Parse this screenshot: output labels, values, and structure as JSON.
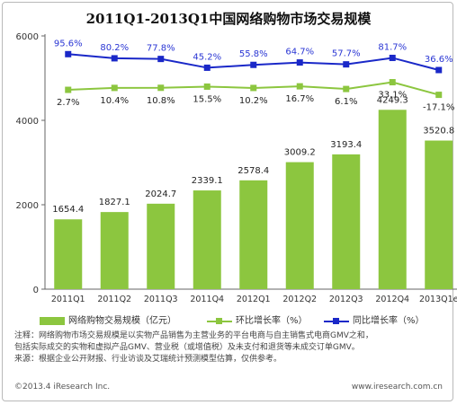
{
  "title": "2011Q1-2013Q1中国网络购物市场交易规模",
  "chart_data": {
    "type": "bar",
    "categories": [
      "2011Q1",
      "2011Q2",
      "2011Q3",
      "2011Q4",
      "2012Q1",
      "2012Q2",
      "2012Q3",
      "2012Q4",
      "2013Q1e"
    ],
    "ylim": [
      0,
      6000
    ],
    "yticks": [
      0,
      2000,
      4000,
      6000
    ],
    "series": [
      {
        "name": "网络购物交易规模（亿元）",
        "kind": "bar",
        "values": [
          1654.4,
          1827.1,
          2024.7,
          2339.1,
          2578.4,
          3009.2,
          3193.4,
          4249.3,
          3520.8
        ],
        "labels": [
          "1654.4",
          "1827.1",
          "2024.7",
          "2339.1",
          "2578.4",
          "3009.2",
          "3193.4",
          "4249.3",
          "3520.8"
        ]
      },
      {
        "name": "环比增长率（%）",
        "kind": "line",
        "values": [
          2.7,
          10.4,
          10.8,
          15.5,
          10.2,
          16.7,
          6.1,
          33.1,
          -17.1
        ],
        "labels": [
          "2.7%",
          "10.4%",
          "10.8%",
          "15.5%",
          "10.2%",
          "16.7%",
          "6.1%",
          "33.1%",
          "-17.1%"
        ]
      },
      {
        "name": "同比增长率（%）",
        "kind": "line",
        "values": [
          95.6,
          80.2,
          77.8,
          45.2,
          55.8,
          64.7,
          57.7,
          81.7,
          36.6
        ],
        "labels": [
          "95.6%",
          "80.2%",
          "77.8%",
          "45.2%",
          "55.8%",
          "64.7%",
          "57.7%",
          "81.7%",
          "36.6%"
        ]
      }
    ],
    "colors": {
      "bar": "#8cc63f",
      "qoq": "#8cc63f",
      "yoy": "#1a28c8",
      "yoy_label": "#2a36d4"
    },
    "grid": false,
    "legend": "bottom"
  },
  "notes": [
    "注释：网络购物市场交易规模是以实物产品销售为主营业务的平台电商与自主销售式电商GMV之和，",
    "包括实际成交的实物和虚拟产品GMV、营业税（或增值税）及未支付和退货等未成交订单GMV。",
    "来源：根据企业公开财报、行业访谈及艾瑞统计预测模型估算，仅供参考。"
  ],
  "footer": {
    "left": "©2013.4 iResearch Inc.",
    "right": "www.iresearch.com.cn"
  }
}
